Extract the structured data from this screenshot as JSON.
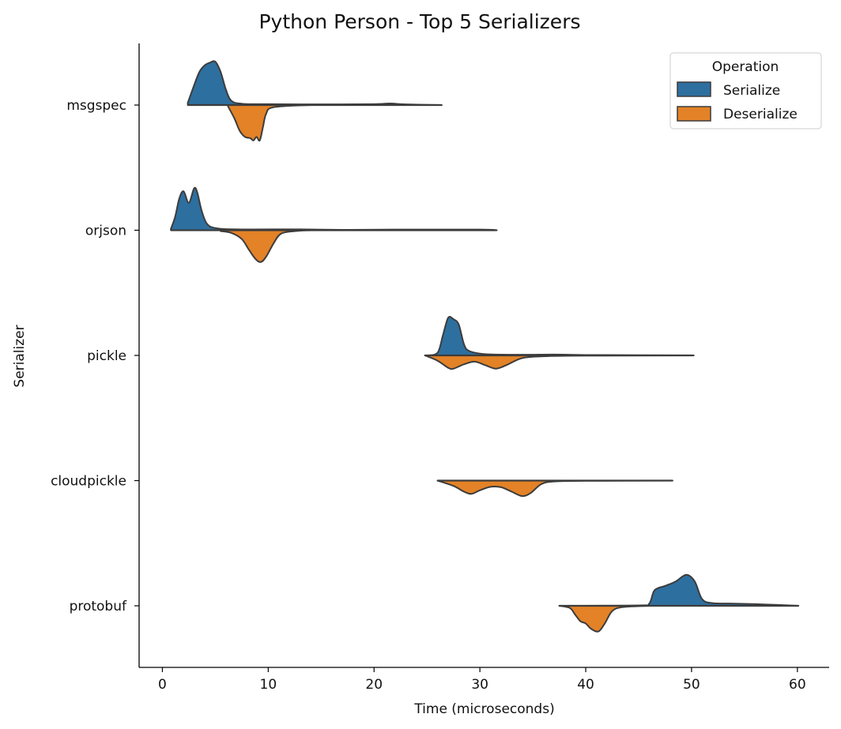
{
  "chart_data": {
    "type": "violin",
    "title": "Python Person - Top 5 Serializers",
    "xlabel": "Time (microseconds)",
    "ylabel": "Serializer",
    "xlim": [
      -2.2,
      63.0
    ],
    "x_ticks": [
      0,
      10,
      20,
      30,
      40,
      50,
      60
    ],
    "categories": [
      "msgspec",
      "orjson",
      "pickle",
      "cloudpickle",
      "protobuf"
    ],
    "legend": {
      "title": "Operation",
      "position": "top-right",
      "entries": [
        "Serialize",
        "Deserialize"
      ]
    },
    "colors": {
      "Serialize": "#2d6f9f",
      "Deserialize": "#e38227",
      "outline": "#3c3c3c"
    },
    "series": [
      {
        "name": "Serialize",
        "side": "upper",
        "violins": [
          {
            "category": "msgspec",
            "range": [
              2.4,
              26.4
            ],
            "profile": [
              [
                2.4,
                0.05
              ],
              [
                3.0,
                0.45
              ],
              [
                3.5,
                0.75
              ],
              [
                4.0,
                0.9
              ],
              [
                4.5,
                0.96
              ],
              [
                5.0,
                0.98
              ],
              [
                5.5,
                0.75
              ],
              [
                6.0,
                0.35
              ],
              [
                6.5,
                0.1
              ],
              [
                7.5,
                0.03
              ],
              [
                10,
                0.02
              ],
              [
                15,
                0.015
              ],
              [
                20,
                0.02
              ],
              [
                21.5,
                0.035
              ],
              [
                23,
                0.015
              ],
              [
                26.4,
                0.0
              ]
            ]
          },
          {
            "category": "orjson",
            "range": [
              0.8,
              31.6
            ],
            "profile": [
              [
                0.8,
                0.03
              ],
              [
                1.2,
                0.3
              ],
              [
                1.6,
                0.72
              ],
              [
                2.0,
                0.88
              ],
              [
                2.5,
                0.62
              ],
              [
                3.0,
                0.95
              ],
              [
                3.3,
                0.85
              ],
              [
                3.7,
                0.45
              ],
              [
                4.2,
                0.15
              ],
              [
                5,
                0.05
              ],
              [
                7,
                0.02
              ],
              [
                13,
                0.02
              ],
              [
                17,
                0.01
              ],
              [
                22,
                0.015
              ],
              [
                30,
                0.015
              ],
              [
                31.6,
                0.0
              ]
            ]
          },
          {
            "category": "pickle",
            "range": [
              25.0,
              50.2
            ],
            "profile": [
              [
                25,
                0.0
              ],
              [
                26,
                0.06
              ],
              [
                26.5,
                0.45
              ],
              [
                27,
                0.85
              ],
              [
                27.5,
                0.82
              ],
              [
                28,
                0.7
              ],
              [
                28.5,
                0.25
              ],
              [
                29,
                0.1
              ],
              [
                30.5,
                0.03
              ],
              [
                34,
                0.015
              ],
              [
                37,
                0.02
              ],
              [
                40,
                0.01
              ],
              [
                50.2,
                0.0
              ]
            ]
          },
          {
            "category": "cloudpickle",
            "range": [
              26.0,
              48.2
            ],
            "profile": [
              [
                26,
                0.0
              ],
              [
                48.2,
                0.0
              ]
            ]
          },
          {
            "category": "protobuf",
            "range": [
              37.5,
              60.1
            ],
            "profile": [
              [
                37.5,
                0.0
              ],
              [
                45,
                0.01
              ],
              [
                46,
                0.05
              ],
              [
                46.5,
                0.35
              ],
              [
                47.5,
                0.45
              ],
              [
                48.5,
                0.55
              ],
              [
                49.5,
                0.7
              ],
              [
                50.3,
                0.55
              ],
              [
                51,
                0.15
              ],
              [
                52,
                0.06
              ],
              [
                54,
                0.05
              ],
              [
                57,
                0.03
              ],
              [
                60.1,
                0.0
              ]
            ]
          }
        ]
      },
      {
        "name": "Deserialize",
        "side": "lower",
        "violins": [
          {
            "category": "msgspec",
            "range": [
              6.2,
              26.4
            ],
            "profile": [
              [
                6.2,
                0.03
              ],
              [
                6.8,
                0.3
              ],
              [
                7.3,
                0.58
              ],
              [
                7.8,
                0.72
              ],
              [
                8.3,
                0.75
              ],
              [
                8.6,
                0.8
              ],
              [
                8.9,
                0.72
              ],
              [
                9.2,
                0.8
              ],
              [
                9.5,
                0.5
              ],
              [
                9.8,
                0.2
              ],
              [
                10.5,
                0.05
              ],
              [
                14,
                0.0
              ]
            ]
          },
          {
            "category": "orjson",
            "range": [
              5.5,
              31.6
            ],
            "profile": [
              [
                5.5,
                0.02
              ],
              [
                6.5,
                0.06
              ],
              [
                7.5,
                0.2
              ],
              [
                8.2,
                0.45
              ],
              [
                8.8,
                0.65
              ],
              [
                9.3,
                0.72
              ],
              [
                9.8,
                0.6
              ],
              [
                10.5,
                0.3
              ],
              [
                11.2,
                0.08
              ],
              [
                12.5,
                0.02
              ],
              [
                14,
                0.0
              ]
            ]
          },
          {
            "category": "pickle",
            "range": [
              24.8,
              50.2
            ],
            "profile": [
              [
                24.8,
                0.0
              ],
              [
                26,
                0.12
              ],
              [
                27,
                0.28
              ],
              [
                27.5,
                0.3
              ],
              [
                28.5,
                0.2
              ],
              [
                29.5,
                0.14
              ],
              [
                30.5,
                0.22
              ],
              [
                31.5,
                0.3
              ],
              [
                32.5,
                0.22
              ],
              [
                34,
                0.06
              ],
              [
                36,
                0.02
              ],
              [
                40,
                0.005
              ],
              [
                50.2,
                0.0
              ]
            ]
          },
          {
            "category": "cloudpickle",
            "range": [
              26.0,
              48.2
            ],
            "profile": [
              [
                26,
                0.0
              ],
              [
                27.5,
                0.12
              ],
              [
                28.5,
                0.25
              ],
              [
                29.2,
                0.3
              ],
              [
                30,
                0.22
              ],
              [
                31,
                0.14
              ],
              [
                32,
                0.15
              ],
              [
                33,
                0.25
              ],
              [
                34,
                0.35
              ],
              [
                34.8,
                0.28
              ],
              [
                35.8,
                0.08
              ],
              [
                37,
                0.02
              ],
              [
                40,
                0.005
              ],
              [
                48.2,
                0.0
              ]
            ]
          },
          {
            "category": "protobuf",
            "range": [
              37.5,
              60.1
            ],
            "profile": [
              [
                37.5,
                0.0
              ],
              [
                38.5,
                0.05
              ],
              [
                39,
                0.2
              ],
              [
                39.5,
                0.35
              ],
              [
                40,
                0.4
              ],
              [
                40.5,
                0.52
              ],
              [
                41.2,
                0.58
              ],
              [
                41.8,
                0.4
              ],
              [
                42.5,
                0.12
              ],
              [
                43.5,
                0.03
              ],
              [
                46,
                0.0
              ]
            ]
          }
        ]
      }
    ]
  }
}
